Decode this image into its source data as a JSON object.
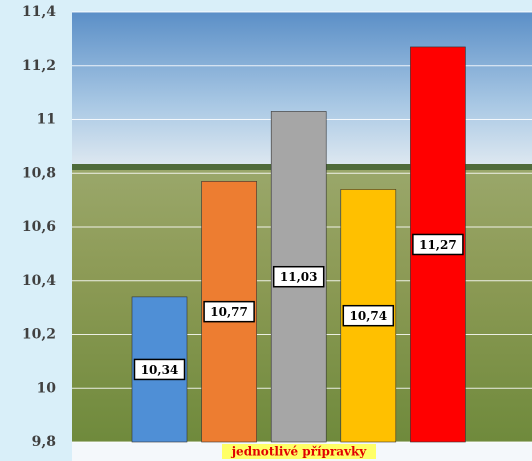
{
  "chart_data": {
    "type": "bar",
    "categories": [
      null,
      null,
      null,
      null,
      null
    ],
    "values": [
      10.34,
      10.77,
      11.03,
      10.74,
      11.27
    ],
    "value_labels": [
      "10,34",
      "10,77",
      "11,03",
      "10,74",
      "11,27"
    ],
    "colors": [
      "#4f8fd6",
      "#ed7d31",
      "#a6a6a6",
      "#ffc000",
      "#ff0000"
    ],
    "x_label": "jednotlivé přípravky",
    "ylim": [
      9.8,
      11.4
    ],
    "yticks": [
      {
        "value": 9.8,
        "label": "9,8"
      },
      10,
      {
        "value": 10.2,
        "label": "10,2"
      },
      {
        "value": 10.4,
        "label": "10,4"
      },
      {
        "value": 10.6,
        "label": "10,6"
      },
      {
        "value": 10.8,
        "label": "10,8"
      },
      11,
      {
        "value": 11.2,
        "label": "11,2"
      },
      {
        "value": 11.4,
        "label": "11,4"
      }
    ],
    "grid": true
  }
}
